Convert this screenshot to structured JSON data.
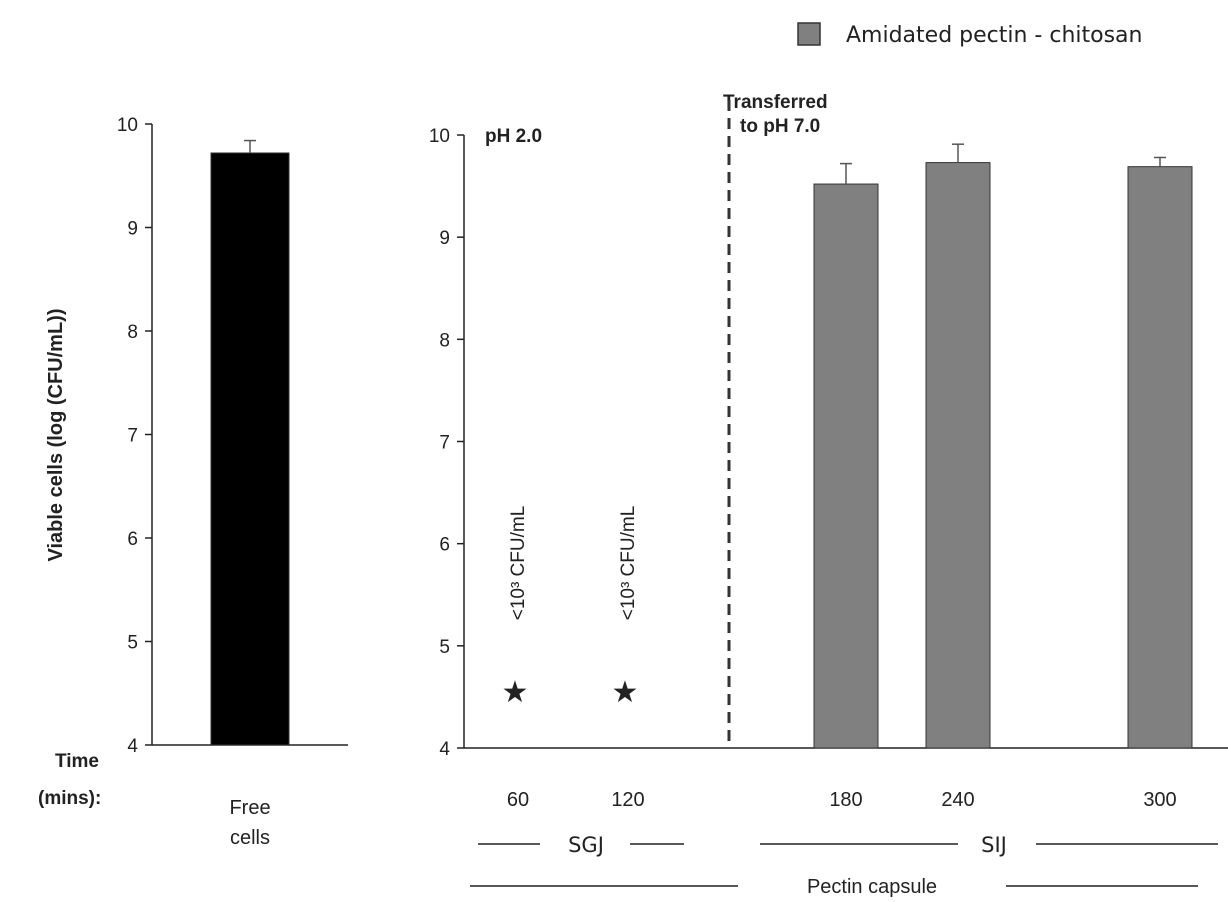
{
  "chart_data": [
    {
      "type": "bar",
      "title": "",
      "ylabel": "Viable cells (log (CFU/mL))",
      "ylim": [
        4,
        10
      ],
      "yticks": [
        4,
        5,
        6,
        7,
        8,
        9,
        10
      ],
      "categories": [
        "Free cells"
      ],
      "category_lines": [
        "Free",
        "cells"
      ],
      "values": [
        9.72
      ],
      "errors": [
        0.12
      ],
      "bar_color": "#000000"
    },
    {
      "type": "bar",
      "title": "",
      "ylim": [
        4,
        10
      ],
      "yticks": [
        4,
        5,
        6,
        7,
        8,
        9,
        10
      ],
      "categories": [
        "60",
        "120",
        "180",
        "240",
        "300"
      ],
      "series": [
        {
          "name": "Amidated pectin - chitosan",
          "values": [
            null,
            null,
            9.52,
            9.73,
            9.69
          ],
          "errors": [
            null,
            null,
            0.2,
            0.18,
            0.09
          ]
        }
      ],
      "bar_color": "#808080",
      "below_detection": [
        {
          "category": "60",
          "label": "<10³ CFU/mL",
          "marker": "★"
        },
        {
          "category": "120",
          "label": "<10³ CFU/mL",
          "marker": "★"
        }
      ],
      "annotations": {
        "ph_start": "pH 2.0",
        "transfer_line1": "Transferred",
        "transfer_line2": "to pH 7.0"
      },
      "legend": {
        "position": "top-right",
        "label": "Amidated pectin - chitosan"
      }
    }
  ],
  "xaxis_caption": {
    "line1": "Time",
    "line2": "(mins):"
  },
  "groups": {
    "sgj": "SGJ",
    "sij": "SIJ",
    "capsule": "Pectin capsule"
  }
}
